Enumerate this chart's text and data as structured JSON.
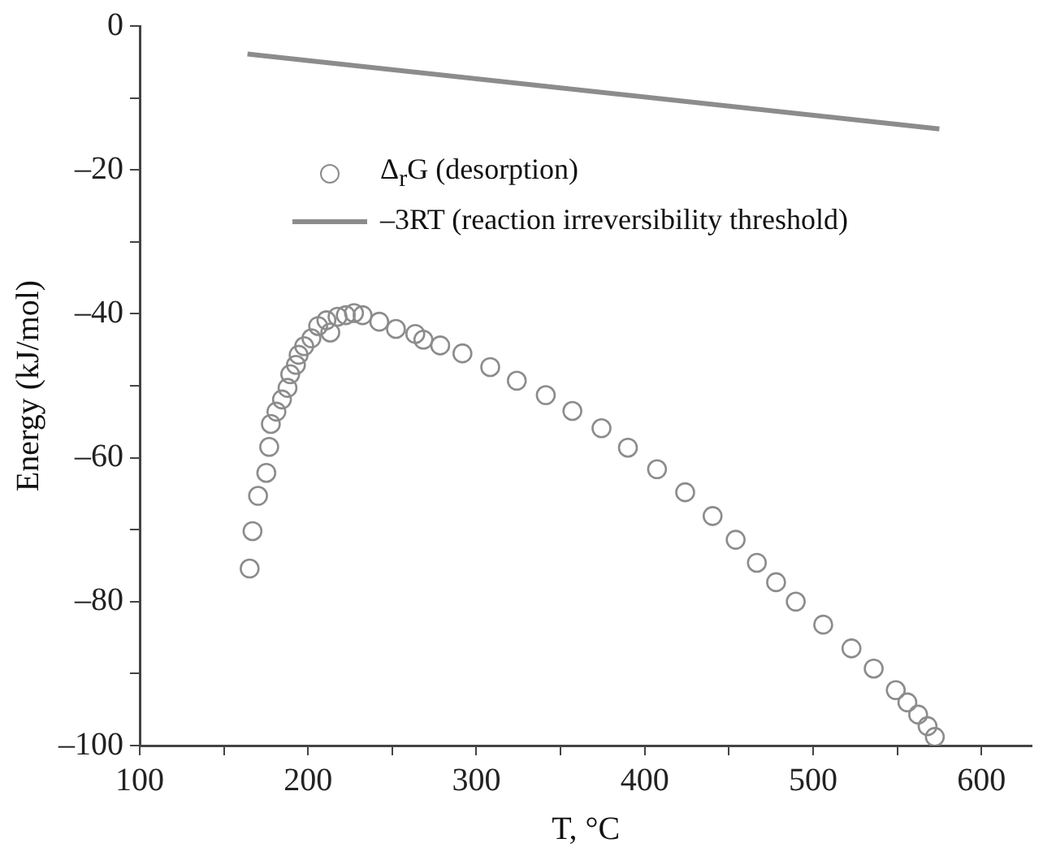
{
  "chart_data": {
    "type": "scatter",
    "xlabel": "T, °C",
    "ylabel": "Energy (kJ/mol)",
    "xlim": [
      100,
      630
    ],
    "ylim": [
      -100,
      0
    ],
    "xticks": [
      100,
      {
        "value": 150,
        "label": null
      },
      200,
      {
        "value": 250,
        "label": null
      },
      300,
      {
        "value": 350,
        "label": null
      },
      400,
      {
        "value": 450,
        "label": null
      },
      500,
      {
        "value": 550,
        "label": null
      },
      600
    ],
    "yticks": [
      {
        "value": -100,
        "label": "–100"
      },
      {
        "value": -90,
        "label": null
      },
      {
        "value": -80,
        "label": "–80"
      },
      {
        "value": -70,
        "label": null
      },
      {
        "value": -60,
        "label": "–60"
      },
      {
        "value": -50,
        "label": null
      },
      {
        "value": -40,
        "label": "–40"
      },
      {
        "value": -30,
        "label": null
      },
      {
        "value": -20,
        "label": "–20"
      },
      {
        "value": -10,
        "label": null
      },
      0
    ],
    "grid": false,
    "legend": "top",
    "marker": "circle",
    "series": [
      {
        "name": "Δ$_{r}$G (desorption)",
        "color": "#8c8c8c",
        "x": [
          165.3,
          167,
          170.3,
          175.2,
          176.9,
          177.9,
          181.2,
          184.5,
          187.8,
          189.4,
          192.8,
          194.4,
          197.7,
          202,
          206,
          210.9,
          213.2,
          217.5,
          222.4,
          227.3,
          232.4,
          242.3,
          252.2,
          263.7,
          268.5,
          278.5,
          291.7,
          308.2,
          324,
          341.2,
          357,
          374.3,
          390,
          407.3,
          424,
          440.3,
          454,
          466.6,
          478,
          489.7,
          506,
          522.8,
          536,
          549.1,
          556,
          562.4,
          568,
          572.3
        ],
        "values": [
          -75.4,
          -70.2,
          -65.3,
          -62.1,
          -58.5,
          -55.3,
          -53.6,
          -51.9,
          -50.3,
          -48.4,
          -47.1,
          -45.7,
          -44.5,
          -43.4,
          -41.7,
          -40.9,
          -42.6,
          -40.4,
          -40.2,
          -39.9,
          -40.2,
          -41.1,
          -42.1,
          -42.8,
          -43.6,
          -44.4,
          -45.5,
          -47.4,
          -49.3,
          -51.3,
          -53.5,
          -55.9,
          -58.6,
          -61.6,
          -64.8,
          -68.1,
          -71.4,
          -74.6,
          -77.3,
          -80,
          -83.2,
          -86.5,
          -89.3,
          -92.3,
          -94,
          -95.7,
          -97.3,
          -98.8
        ]
      },
      {
        "name": "–3RT (reaction irreversibility threshold)",
        "type": "line",
        "color": "#8c8c8c",
        "line_style": "solid",
        "marker": "none",
        "x": [
          164,
          575
        ],
        "values": [
          -3.9,
          -14.3
        ]
      }
    ]
  }
}
